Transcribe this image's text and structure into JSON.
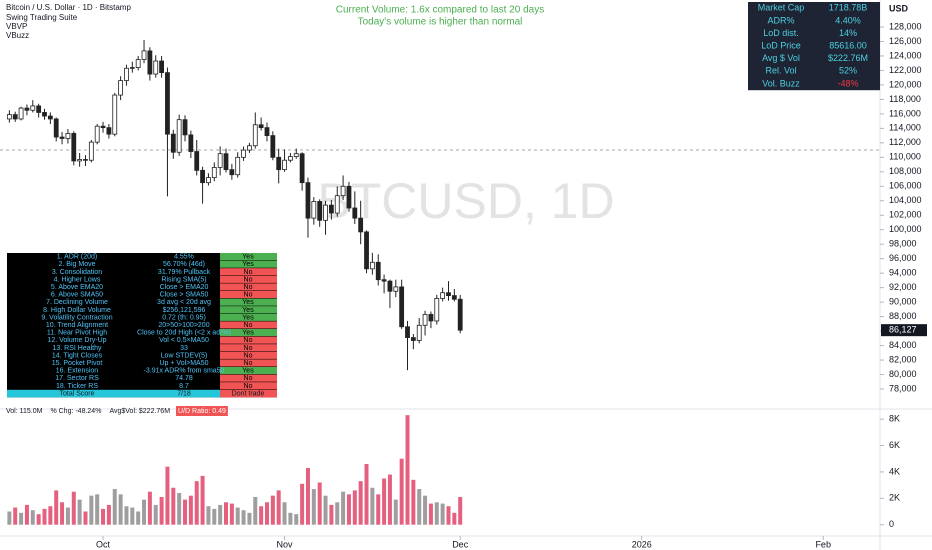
{
  "header": {
    "title": "Bitcoin / U.S. Dollar · 1D · Bitstamp",
    "indicators": [
      "Swing Trading Suite",
      "VBVP",
      "VBuzz"
    ],
    "watermark": "BTCUSD, 1D",
    "currency": "USD"
  },
  "annotations": [
    "Current Volume: 1.6x compared to last 20 days",
    "Today's volume is higher than normal"
  ],
  "metrics": [
    {
      "label": "Market Cap",
      "value": "1718.78B"
    },
    {
      "label": "ADR%",
      "value": "4.40%"
    },
    {
      "label": "LoD dist.",
      "value": "14%"
    },
    {
      "label": "LoD Price",
      "value": "85616.00"
    },
    {
      "label": "Avg $ Vol",
      "value": "$222.76M"
    },
    {
      "label": "Rel. Vol",
      "value": "52%"
    },
    {
      "label": "Vol. Buzz",
      "value": "-48%",
      "color": "#f23645"
    }
  ],
  "checklist": {
    "rows": [
      {
        "label": "1. ADR (20d)",
        "value": "4.55%",
        "result": "Yes",
        "color": "#4caf50"
      },
      {
        "label": "2. Big Move",
        "value": "56.70% (46d)",
        "result": "Yes",
        "color": "#4caf50"
      },
      {
        "label": "3. Consolidation",
        "value": "31.79% Pullback",
        "result": "No",
        "color": "#f05454"
      },
      {
        "label": "4. Higher Lows",
        "value": "Rising SMA(5)",
        "result": "No",
        "color": "#f05454"
      },
      {
        "label": "5. Above EMA20",
        "value": "Close > EMA20",
        "result": "No",
        "color": "#f05454"
      },
      {
        "label": "6. Above SMA50",
        "value": "Close > SMA50",
        "result": "No",
        "color": "#f05454"
      },
      {
        "label": "7. Declining Volume",
        "value": "3d avg < 20d avg",
        "result": "Yes",
        "color": "#4caf50"
      },
      {
        "label": "8. High Dollar Volume",
        "value": "$256,121,596",
        "result": "Yes",
        "color": "#4caf50"
      },
      {
        "label": "9. Volatility Contraction",
        "value": "0.72 (th: 0.95)",
        "result": "Yes",
        "color": "#4caf50"
      },
      {
        "label": "10. Trend Alignment",
        "value": "20>50>100>200",
        "result": "No",
        "color": "#f05454"
      },
      {
        "label": "11. Near Pivot High",
        "value": "Close to 20d High (<2 x adr%)",
        "result": "Yes",
        "color": "#4caf50"
      },
      {
        "label": "12. Volume Dry-Up",
        "value": "Vol < 0.5×MA50",
        "result": "No",
        "color": "#f05454"
      },
      {
        "label": "13. RSI Healthy",
        "value": "33",
        "result": "No",
        "color": "#f05454"
      },
      {
        "label": "14. Tight Closes",
        "value": "Low STDEV(5)",
        "result": "No",
        "color": "#f05454"
      },
      {
        "label": "15. Pocket Pivot",
        "value": "Up + Vol>MA50",
        "result": "No",
        "color": "#f05454"
      },
      {
        "label": "16. Extension",
        "value": "-3.91x ADR% from sma50",
        "result": "Yes",
        "color": "#4caf50"
      },
      {
        "label": "17. Sector RS",
        "value": "74.78",
        "result": "No",
        "color": "#f05454"
      },
      {
        "label": "18. Ticker RS",
        "value": "8.7",
        "result": "No",
        "color": "#f05454"
      }
    ],
    "total": {
      "label": "Total Score",
      "value": "7/18",
      "result": "Dont trade"
    }
  },
  "volume_info": [
    "Vol: 115.0M",
    "% Chg: -48.24%",
    "Avg$Vol: $222.76M",
    "U/D Ratio: 0.49"
  ],
  "chart_data": [
    {
      "type": "candlestick",
      "up_color": "#ffffff",
      "down_color": "#222222",
      "ohlc": [
        [
          115300,
          116500,
          114800,
          115900
        ],
        [
          115900,
          116300,
          114900,
          115300
        ],
        [
          115300,
          117000,
          115100,
          116800
        ],
        [
          116800,
          117300,
          115800,
          116500
        ],
        [
          116500,
          117900,
          116200,
          117100
        ],
        [
          117100,
          117400,
          115500,
          116200
        ],
        [
          116200,
          116700,
          115200,
          115700
        ],
        [
          115700,
          116200,
          114600,
          115300
        ],
        [
          115300,
          115500,
          112200,
          112800
        ],
        [
          112800,
          113500,
          111800,
          112600
        ],
        [
          112600,
          113900,
          111900,
          113300
        ],
        [
          113300,
          113600,
          108900,
          109500
        ],
        [
          109500,
          110600,
          108700,
          109700
        ],
        [
          109700,
          110300,
          108800,
          109600
        ],
        [
          109600,
          112400,
          109300,
          112100
        ],
        [
          112100,
          114600,
          111800,
          114300
        ],
        [
          114300,
          114900,
          113400,
          114100
        ],
        [
          114100,
          114600,
          112600,
          113200
        ],
        [
          113200,
          118900,
          112900,
          118600
        ],
        [
          118600,
          121200,
          117900,
          120600
        ],
        [
          120600,
          122800,
          119900,
          122300
        ],
        [
          122300,
          123200,
          121700,
          122400
        ],
        [
          122400,
          124000,
          122000,
          123500
        ],
        [
          123500,
          126200,
          123000,
          124700
        ],
        [
          124700,
          125200,
          120600,
          121500
        ],
        [
          121500,
          124100,
          121000,
          123300
        ],
        [
          123300,
          124000,
          121000,
          121700
        ],
        [
          121700,
          122400,
          104600,
          113200
        ],
        [
          113200,
          113800,
          109800,
          110700
        ],
        [
          110700,
          115900,
          110200,
          115200
        ],
        [
          115200,
          115800,
          112200,
          113100
        ],
        [
          113100,
          113700,
          109900,
          110800
        ],
        [
          110800,
          112400,
          107500,
          108200
        ],
        [
          108200,
          108700,
          103600,
          106500
        ],
        [
          106500,
          107800,
          106100,
          107200
        ],
        [
          107200,
          109300,
          106700,
          108600
        ],
        [
          108600,
          111500,
          107500,
          110500
        ],
        [
          110500,
          111200,
          107900,
          108300
        ],
        [
          108300,
          109100,
          106900,
          107600
        ],
        [
          107600,
          110700,
          107200,
          110000
        ],
        [
          110000,
          111500,
          109500,
          111000
        ],
        [
          111000,
          112000,
          110600,
          111600
        ],
        [
          111600,
          116200,
          111200,
          114500
        ],
        [
          114500,
          115500,
          113700,
          114100
        ],
        [
          114100,
          114800,
          112200,
          113000
        ],
        [
          113000,
          113600,
          109600,
          110000
        ],
        [
          110000,
          111200,
          106400,
          108300
        ],
        [
          108300,
          111100,
          108000,
          109600
        ],
        [
          109600,
          110600,
          109300,
          110100
        ],
        [
          110100,
          111200,
          109800,
          110500
        ],
        [
          110500,
          110700,
          105400,
          106500
        ],
        [
          106500,
          107200,
          98900,
          101600
        ],
        [
          101600,
          104500,
          100700,
          103900
        ],
        [
          103900,
          104200,
          100400,
          101300
        ],
        [
          101300,
          104000,
          99300,
          103400
        ],
        [
          103400,
          104100,
          101400,
          102300
        ],
        [
          102300,
          106000,
          101800,
          104700
        ],
        [
          104700,
          107500,
          104100,
          106000
        ],
        [
          106000,
          106600,
          102500,
          103000
        ],
        [
          103000,
          105300,
          100800,
          101600
        ],
        [
          101600,
          104000,
          98000,
          99700
        ],
        [
          99700,
          99900,
          94000,
          94600
        ],
        [
          94600,
          96800,
          93800,
          95500
        ],
        [
          95500,
          96600,
          92300,
          93100
        ],
        [
          93100,
          93800,
          91200,
          92900
        ],
        [
          92900,
          93100,
          89200,
          91500
        ],
        [
          91500,
          93100,
          90700,
          92100
        ],
        [
          92100,
          93100,
          86300,
          86600
        ],
        [
          86600,
          87400,
          80600,
          85100
        ],
        [
          85100,
          85600,
          83500,
          84700
        ],
        [
          84700,
          87800,
          84300,
          86800
        ],
        [
          86800,
          88800,
          85400,
          88300
        ],
        [
          88300,
          88700,
          86400,
          87400
        ],
        [
          87400,
          91000,
          86900,
          90500
        ],
        [
          90500,
          92000,
          90100,
          91300
        ],
        [
          91300,
          92900,
          90200,
          90900
        ],
        [
          90900,
          91800,
          90100,
          90400
        ],
        [
          90400,
          91000,
          85700,
          86127
        ]
      ],
      "xlim": [
        -1.6,
        148.7
      ],
      "xticks": [
        {
          "value": 16,
          "label": "Oct"
        },
        {
          "value": 47,
          "label": "Nov"
        },
        {
          "value": 77,
          "label": "Dec"
        },
        {
          "value": 108,
          "label": "2026"
        },
        {
          "value": 139,
          "label": "Feb"
        }
      ],
      "ylim": [
        75100,
        131730
      ],
      "yticks": [
        {
          "value": 78000,
          "label": "78,000"
        },
        {
          "value": 80000,
          "label": "80,000"
        },
        {
          "value": 82000,
          "label": "82,000"
        },
        {
          "value": 84000,
          "label": "84,000"
        },
        {
          "value": 86000,
          "label": "86,000"
        },
        {
          "value": 88000,
          "label": "88,000"
        },
        {
          "value": 90000,
          "label": "90,000"
        },
        {
          "value": 92000,
          "label": "92,000"
        },
        {
          "value": 94000,
          "label": "94,000"
        },
        {
          "value": 96000,
          "label": "96,000"
        },
        {
          "value": 98000,
          "label": "98,000"
        },
        {
          "value": 100000,
          "label": "100,000"
        },
        {
          "value": 102000,
          "label": "102,000"
        },
        {
          "value": 104000,
          "label": "104,000"
        },
        {
          "value": 106000,
          "label": "106,000"
        },
        {
          "value": 108000,
          "label": "108,000"
        },
        {
          "value": 110000,
          "label": "110,000"
        },
        {
          "value": 112000,
          "label": "112,000"
        },
        {
          "value": 114000,
          "label": "114,000"
        },
        {
          "value": 116000,
          "label": "116,000"
        },
        {
          "value": 118000,
          "label": "118,000"
        },
        {
          "value": 120000,
          "label": "120,000"
        },
        {
          "value": 122000,
          "label": "122,000"
        },
        {
          "value": 124000,
          "label": "124,000"
        },
        {
          "value": 126000,
          "label": "126,000"
        },
        {
          "value": 128000,
          "label": "128,000"
        }
      ],
      "last_price": {
        "value": 86127,
        "label": "86,127"
      }
    },
    {
      "type": "bar",
      "up_color": "#9e9e9e",
      "down_color": "#e5607f",
      "values": [
        1000,
        1300,
        900,
        1500,
        1100,
        800,
        1200,
        1400,
        2600,
        1700,
        1300,
        2500,
        1900,
        1000,
        2200,
        2300,
        1200,
        1500,
        2700,
        2300,
        1400,
        1300,
        1000,
        1900,
        2500,
        1500,
        2100,
        4400,
        2800,
        2400,
        1900,
        2200,
        3300,
        3700,
        1400,
        1200,
        1500,
        1700,
        1600,
        1300,
        1100,
        900,
        2100,
        1400,
        1700,
        2200,
        2600,
        1700,
        900,
        800,
        3100,
        4300,
        2700,
        3200,
        2200,
        1500,
        1700,
        2500,
        2300,
        2600,
        3300,
        4600,
        2800,
        2300,
        3500,
        3800,
        1900,
        5000,
        8300,
        3400,
        2700,
        2200,
        1600,
        1700,
        1600,
        1400,
        900,
        2100
      ],
      "ylim": [
        -780,
        8540
      ],
      "yticks": [
        0,
        {
          "value": 2000,
          "label": "2K"
        },
        {
          "value": 4000,
          "label": "4K"
        },
        {
          "value": 6000,
          "label": "6K"
        },
        {
          "value": 8000,
          "label": "8K"
        }
      ]
    }
  ]
}
